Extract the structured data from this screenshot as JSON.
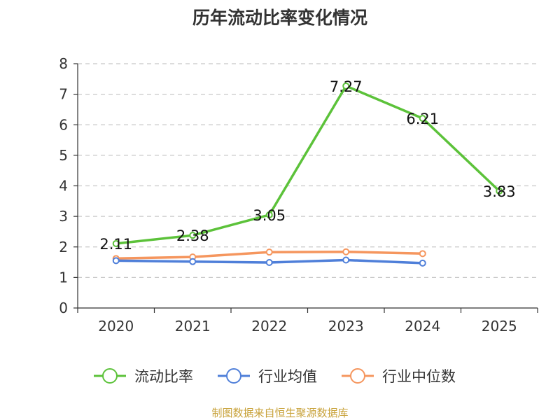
{
  "chart_data": {
    "type": "line",
    "title": "历年流动比率变化情况",
    "xlabel": "",
    "ylabel": "",
    "categories": [
      "2020",
      "2021",
      "2022",
      "2023",
      "2024",
      "2025"
    ],
    "ylim": [
      0,
      8
    ],
    "yticks": [
      "0",
      "1",
      "2",
      "3",
      "4",
      "5",
      "6",
      "7",
      "8"
    ],
    "grid": true,
    "legend_position": "bottom",
    "series": [
      {
        "name": "流动比率",
        "color": "#5cc23a",
        "values": [
          2.11,
          2.38,
          3.05,
          7.27,
          6.21,
          3.83
        ],
        "labels": [
          "2.11",
          "2.38",
          "3.05",
          "7.27",
          "6.21",
          "3.83"
        ]
      },
      {
        "name": "行业均值",
        "color": "#4f7fd9",
        "values": [
          1.55,
          1.52,
          1.49,
          1.57,
          1.47,
          null
        ],
        "labels": []
      },
      {
        "name": "行业中位数",
        "color": "#f5965e",
        "values": [
          1.62,
          1.67,
          1.83,
          1.84,
          1.78,
          null
        ],
        "labels": []
      }
    ],
    "source": "制图数据来自恒生聚源数据库",
    "source_color": "#c8a23a"
  }
}
